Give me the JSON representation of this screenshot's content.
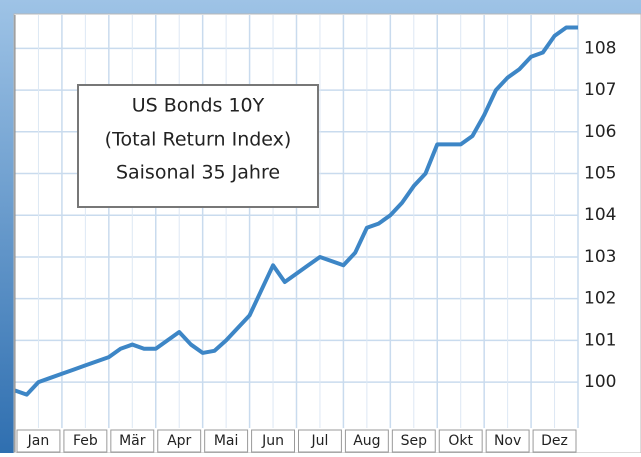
{
  "chart_data": {
    "type": "line",
    "title": [
      "US Bonds 10Y",
      "(Total Return Index)",
      "Saisonal 35 Jahre"
    ],
    "categories": [
      "Jan",
      "Feb",
      "Mär",
      "Apr",
      "Mai",
      "Jun",
      "Jul",
      "Aug",
      "Sep",
      "Okt",
      "Nov",
      "Dez"
    ],
    "x": [
      0,
      0.25,
      0.5,
      0.75,
      1,
      1.25,
      1.5,
      1.75,
      2,
      2.25,
      2.5,
      2.75,
      3,
      3.25,
      3.5,
      3.75,
      4,
      4.25,
      4.5,
      4.75,
      5,
      5.25,
      5.5,
      5.75,
      6,
      6.25,
      6.5,
      6.75,
      7,
      7.25,
      7.5,
      7.75,
      8,
      8.25,
      8.5,
      8.75,
      9,
      9.25,
      9.5,
      9.75,
      10,
      10.25,
      10.5,
      10.75,
      11,
      11.25,
      11.5,
      11.75,
      12
    ],
    "series": [
      {
        "name": "US Bonds 10Y",
        "color": "#3d86c6",
        "values": [
          99.8,
          99.7,
          100.0,
          100.1,
          100.2,
          100.3,
          100.4,
          100.5,
          100.6,
          100.8,
          100.9,
          100.8,
          100.8,
          101.0,
          101.2,
          100.9,
          100.7,
          100.75,
          101.0,
          101.3,
          101.6,
          102.2,
          102.8,
          102.4,
          102.6,
          102.8,
          103.0,
          102.9,
          102.8,
          103.1,
          103.7,
          103.8,
          104.0,
          104.3,
          104.7,
          105.0,
          105.7,
          105.7,
          105.7,
          105.9,
          106.4,
          107.0,
          107.3,
          107.5,
          107.8,
          107.9,
          108.3,
          108.5,
          108.5
        ]
      }
    ],
    "xlim": [
      0,
      12
    ],
    "ylim": [
      98.9,
      108.8
    ],
    "yticks": [
      100,
      101,
      102,
      103,
      104,
      105,
      106,
      107,
      108
    ],
    "grid": true
  }
}
